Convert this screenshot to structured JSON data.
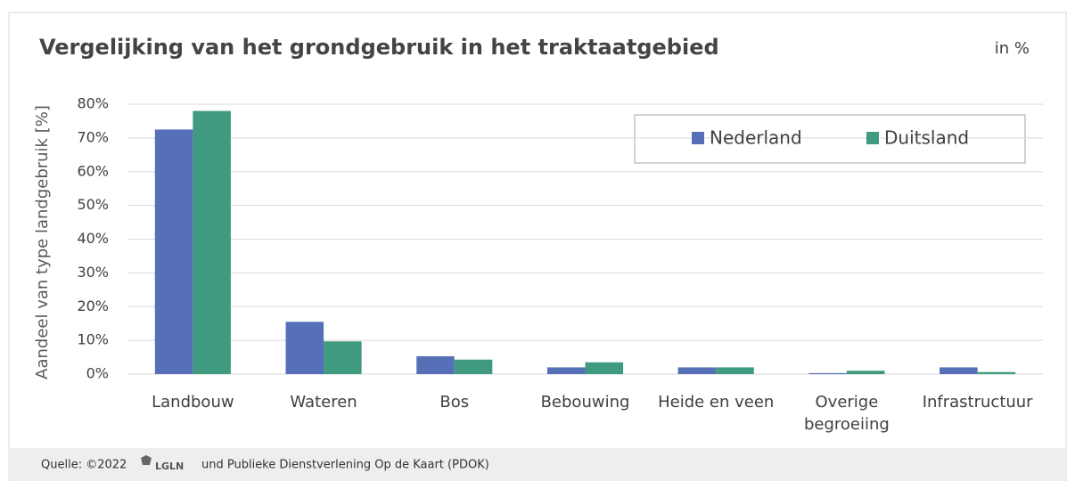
{
  "chart_data": {
    "type": "bar",
    "title": "Vergelijking van het grondgebruik in het traktaatgebied",
    "unit_note": "in %",
    "ylabel": "Aandeel van type landgebruik [%]",
    "categories": [
      "Landbouw",
      "Wateren",
      "Bos",
      "Bebouwing",
      "Heide en veen",
      "Overige begroeiing",
      "Infrastructuur"
    ],
    "series": [
      {
        "name": "Nederland",
        "color": "#5670b8",
        "values": [
          72.5,
          15.5,
          5.3,
          2.0,
          2.0,
          0.3,
          2.0
        ]
      },
      {
        "name": "Duitsland",
        "color": "#3f9a80",
        "values": [
          78,
          9.7,
          4.3,
          3.5,
          2.0,
          1.0,
          0.6
        ]
      }
    ],
    "ylim": [
      0,
      80
    ],
    "yticks": [
      {
        "value": 0,
        "label": "0%"
      },
      {
        "value": 10,
        "label": "10%"
      },
      {
        "value": 20,
        "label": "20%"
      },
      {
        "value": 30,
        "label": "30%"
      },
      {
        "value": 40,
        "label": "40%"
      },
      {
        "value": 50,
        "label": "50%"
      },
      {
        "value": 60,
        "label": "60%"
      },
      {
        "value": 70,
        "label": "70%"
      },
      {
        "value": 80,
        "label": "80%"
      }
    ],
    "grid": true,
    "legend": "top-right",
    "source": {
      "prefix": "Quelle: ©2022",
      "logo": "LGLN",
      "suffix": "und Publieke Dienstverlening Op de Kaart (PDOK)"
    }
  }
}
